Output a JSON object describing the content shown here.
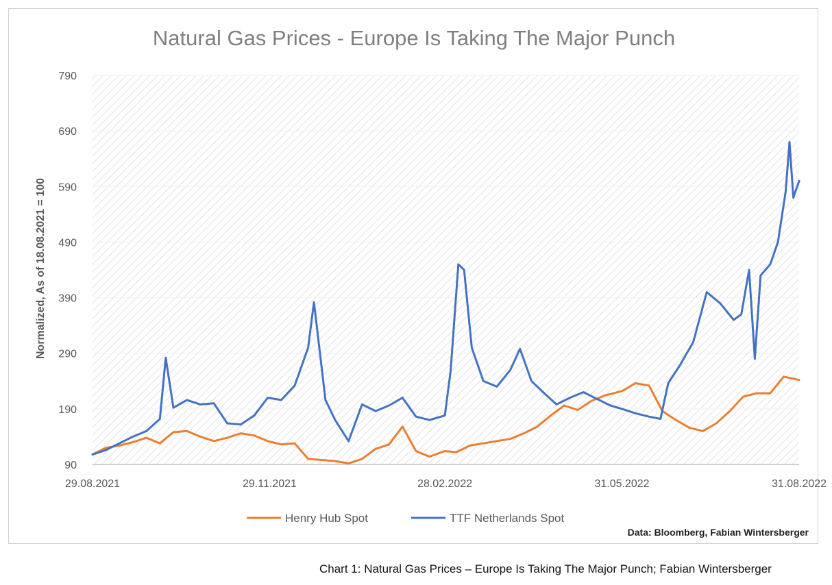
{
  "chart_data": {
    "type": "line",
    "title": "Natural Gas Prices - Europe Is Taking The Major Punch",
    "ylabel": "Normalized, As of 18.08.2021 = 100",
    "xlabel": "",
    "ylim": [
      90,
      790
    ],
    "yticks": [
      "790",
      "690",
      "590",
      "490",
      "390",
      "290",
      "190",
      "90"
    ],
    "xticks": [
      "29.08.2021",
      "29.11.2021",
      "28.02.2022",
      "31.05.2022",
      "31.08.2022"
    ],
    "grid": true,
    "legend_position": "bottom",
    "series": [
      {
        "name": "Henry Hub Spot",
        "color": "#ed7d31",
        "points": [
          [
            "2021-08-29",
            108
          ],
          [
            "2021-09-05",
            120
          ],
          [
            "2021-09-12",
            124
          ],
          [
            "2021-09-19",
            130
          ],
          [
            "2021-09-26",
            138
          ],
          [
            "2021-10-03",
            128
          ],
          [
            "2021-10-10",
            148
          ],
          [
            "2021-10-17",
            150
          ],
          [
            "2021-10-24",
            140
          ],
          [
            "2021-10-31",
            132
          ],
          [
            "2021-11-07",
            138
          ],
          [
            "2021-11-14",
            146
          ],
          [
            "2021-11-21",
            142
          ],
          [
            "2021-11-28",
            132
          ],
          [
            "2021-12-05",
            126
          ],
          [
            "2021-12-12",
            128
          ],
          [
            "2021-12-19",
            100
          ],
          [
            "2021-12-26",
            98
          ],
          [
            "2022-01-02",
            96
          ],
          [
            "2022-01-09",
            92
          ],
          [
            "2022-01-16",
            100
          ],
          [
            "2022-01-23",
            118
          ],
          [
            "2022-01-30",
            126
          ],
          [
            "2022-02-06",
            158
          ],
          [
            "2022-02-13",
            114
          ],
          [
            "2022-02-20",
            104
          ],
          [
            "2022-02-28",
            114
          ],
          [
            "2022-03-06",
            112
          ],
          [
            "2022-03-13",
            124
          ],
          [
            "2022-03-20",
            128
          ],
          [
            "2022-03-27",
            132
          ],
          [
            "2022-04-03",
            136
          ],
          [
            "2022-04-10",
            146
          ],
          [
            "2022-04-17",
            158
          ],
          [
            "2022-04-24",
            178
          ],
          [
            "2022-05-01",
            196
          ],
          [
            "2022-05-08",
            188
          ],
          [
            "2022-05-15",
            204
          ],
          [
            "2022-05-22",
            214
          ],
          [
            "2022-05-31",
            222
          ],
          [
            "2022-06-07",
            236
          ],
          [
            "2022-06-14",
            232
          ],
          [
            "2022-06-21",
            186
          ],
          [
            "2022-06-28",
            170
          ],
          [
            "2022-07-05",
            156
          ],
          [
            "2022-07-12",
            150
          ],
          [
            "2022-07-19",
            164
          ],
          [
            "2022-07-26",
            186
          ],
          [
            "2022-08-02",
            212
          ],
          [
            "2022-08-09",
            218
          ],
          [
            "2022-08-16",
            218
          ],
          [
            "2022-08-23",
            248
          ],
          [
            "2022-08-31",
            242
          ]
        ]
      },
      {
        "name": "TTF Netherlands Spot",
        "color": "#4472c4",
        "points": [
          [
            "2021-08-29",
            108
          ],
          [
            "2021-09-05",
            116
          ],
          [
            "2021-09-12",
            128
          ],
          [
            "2021-09-19",
            140
          ],
          [
            "2021-09-26",
            150
          ],
          [
            "2021-10-03",
            172
          ],
          [
            "2021-10-06",
            282
          ],
          [
            "2021-10-10",
            192
          ],
          [
            "2021-10-17",
            206
          ],
          [
            "2021-10-24",
            198
          ],
          [
            "2021-10-31",
            200
          ],
          [
            "2021-11-07",
            164
          ],
          [
            "2021-11-14",
            162
          ],
          [
            "2021-11-21",
            178
          ],
          [
            "2021-11-28",
            210
          ],
          [
            "2021-12-05",
            206
          ],
          [
            "2021-12-12",
            232
          ],
          [
            "2021-12-19",
            300
          ],
          [
            "2021-12-22",
            382
          ],
          [
            "2021-12-28",
            206
          ],
          [
            "2022-01-02",
            170
          ],
          [
            "2022-01-09",
            132
          ],
          [
            "2022-01-16",
            198
          ],
          [
            "2022-01-23",
            186
          ],
          [
            "2022-01-30",
            196
          ],
          [
            "2022-02-06",
            210
          ],
          [
            "2022-02-13",
            176
          ],
          [
            "2022-02-20",
            170
          ],
          [
            "2022-02-28",
            178
          ],
          [
            "2022-03-03",
            258
          ],
          [
            "2022-03-07",
            450
          ],
          [
            "2022-03-10",
            440
          ],
          [
            "2022-03-14",
            300
          ],
          [
            "2022-03-20",
            240
          ],
          [
            "2022-03-27",
            230
          ],
          [
            "2022-04-03",
            260
          ],
          [
            "2022-04-08",
            298
          ],
          [
            "2022-04-14",
            240
          ],
          [
            "2022-04-20",
            220
          ],
          [
            "2022-04-27",
            198
          ],
          [
            "2022-05-04",
            210
          ],
          [
            "2022-05-11",
            220
          ],
          [
            "2022-05-18",
            208
          ],
          [
            "2022-05-25",
            196
          ],
          [
            "2022-05-31",
            190
          ],
          [
            "2022-06-07",
            182
          ],
          [
            "2022-06-14",
            176
          ],
          [
            "2022-06-20",
            172
          ],
          [
            "2022-06-24",
            236
          ],
          [
            "2022-06-30",
            268
          ],
          [
            "2022-07-07",
            310
          ],
          [
            "2022-07-14",
            400
          ],
          [
            "2022-07-21",
            380
          ],
          [
            "2022-07-28",
            350
          ],
          [
            "2022-08-01",
            360
          ],
          [
            "2022-08-05",
            440
          ],
          [
            "2022-08-08",
            280
          ],
          [
            "2022-08-11",
            430
          ],
          [
            "2022-08-16",
            450
          ],
          [
            "2022-08-20",
            490
          ],
          [
            "2022-08-24",
            580
          ],
          [
            "2022-08-26",
            670
          ],
          [
            "2022-08-28",
            570
          ],
          [
            "2022-08-31",
            600
          ]
        ]
      }
    ]
  },
  "source_note": "Data: Bloomberg, Fabian Wintersberger",
  "caption": "Chart 1: Natural Gas Prices – Europe Is Taking The Major Punch; Fabian Wintersberger"
}
